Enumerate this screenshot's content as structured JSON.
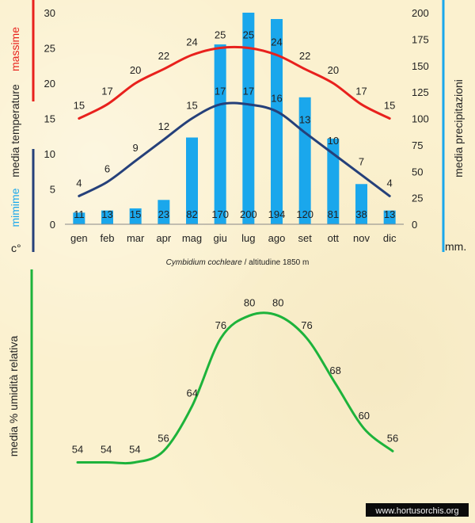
{
  "chart_data": [
    {
      "type": "bar+line",
      "categories": [
        "gen",
        "feb",
        "mar",
        "apr",
        "mag",
        "giu",
        "lug",
        "ago",
        "set",
        "ott",
        "nov",
        "dic"
      ],
      "series": [
        {
          "name": "massime",
          "type": "line",
          "axis": "left",
          "values": [
            15,
            17,
            20,
            22,
            24,
            25,
            25,
            24,
            22,
            20,
            17,
            15
          ],
          "color": "#e8211d"
        },
        {
          "name": "mimime",
          "type": "line",
          "axis": "left",
          "values": [
            4,
            6,
            9,
            12,
            15,
            17,
            17,
            16,
            13,
            10,
            7,
            4
          ],
          "color": "#25407a"
        },
        {
          "name": "media precipitazioni",
          "type": "bar",
          "axis": "right",
          "values": [
            11,
            13,
            15,
            23,
            82,
            170,
            200,
            194,
            120,
            81,
            38,
            13
          ],
          "color": "#1aa7ec"
        }
      ],
      "left_axis": {
        "label_top": "massime",
        "label_mid": "media  temperature",
        "label_bottom": "mimime",
        "unit": "c°",
        "ticks": [
          "0",
          "5",
          "10",
          "15",
          "20",
          "25",
          "30"
        ],
        "ylim": [
          0,
          30
        ]
      },
      "right_axis": {
        "label": "media  precipitazioni",
        "unit": "mm.",
        "ticks": [
          "0",
          "25",
          "50",
          "75",
          "100",
          "125",
          "150",
          "175",
          "200"
        ],
        "ylim": [
          0,
          200
        ]
      },
      "caption_italic": "Cymbidium  cochleare",
      "caption_rest": " /  altitudine 1850 m",
      "grid": false
    },
    {
      "type": "line",
      "ylabel": "media  %  umidità relativa",
      "series": [
        {
          "name": "",
          "values": [
            54,
            54,
            54,
            56,
            64,
            76,
            80,
            80,
            76,
            68,
            60,
            56
          ],
          "color": "#1db33b"
        }
      ],
      "ylim": [
        50,
        82
      ],
      "grid": false
    }
  ],
  "watermark": "www.hortusorchis.org",
  "colors": {
    "red": "#e8211d",
    "navy": "#25407a",
    "blue": "#1aa7ec",
    "green": "#1db33b"
  }
}
